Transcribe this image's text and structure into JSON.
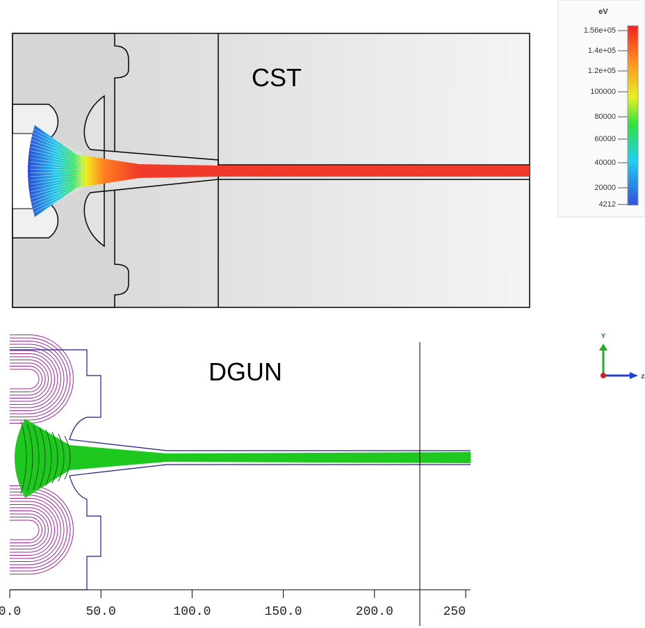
{
  "cst": {
    "label": "CST"
  },
  "colorbar": {
    "unit": "eV",
    "ticks": [
      "1.56e+05",
      "1.4e+05",
      "1.2e+05",
      "100000",
      "80000",
      "60000",
      "40000",
      "20000",
      "4212"
    ]
  },
  "dgun": {
    "label": "DGUN",
    "axis_ticks": [
      "0.0",
      "50.0",
      "100.0",
      "150.0",
      "200.0",
      "250"
    ]
  },
  "triad": {
    "y": "Y",
    "z": "z"
  }
}
